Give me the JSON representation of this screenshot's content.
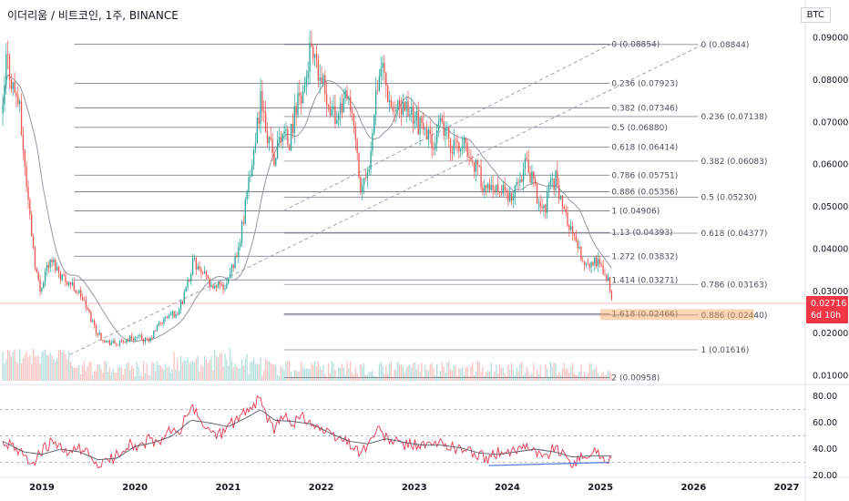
{
  "header": {
    "title": "이더리움 / 비트코인, 1주, BINANCE",
    "quote_currency": "BTC"
  },
  "price_tag": {
    "value": "0.02716",
    "countdown": "6d 10h",
    "color": "#f23645"
  },
  "colors": {
    "up": "#26a69a",
    "down": "#ef5350",
    "ma": "#9598a1",
    "rsi": "#e53950",
    "rsi_ma": "#555a66",
    "fib_line": "#6b6f7a",
    "zone": "#f7a35c",
    "divergence": "#5b7fdc",
    "trend": "#8a8e99"
  },
  "chart_data": [
    {
      "type": "candlestick",
      "xlabel": "",
      "ylabel": "",
      "x_ticks": [
        "2019",
        "2020",
        "2021",
        "2022",
        "2023",
        "2024",
        "2025",
        "2026",
        "2027"
      ],
      "y_ticks": [
        "0.01000",
        "0.02000",
        "0.03000",
        "0.04000",
        "0.05000",
        "0.06000",
        "0.07000",
        "0.08000",
        "0.09000"
      ],
      "ylim": [
        0.0084,
        0.0925
      ],
      "xlim": [
        2018.55,
        2027.2
      ],
      "price_anchors": [
        [
          2018.58,
          0.072
        ],
        [
          2018.62,
          0.086
        ],
        [
          2018.68,
          0.079
        ],
        [
          2018.75,
          0.075
        ],
        [
          2018.85,
          0.052
        ],
        [
          2018.93,
          0.036
        ],
        [
          2018.98,
          0.03
        ],
        [
          2019.05,
          0.036
        ],
        [
          2019.12,
          0.037
        ],
        [
          2019.2,
          0.034
        ],
        [
          2019.3,
          0.032
        ],
        [
          2019.42,
          0.029
        ],
        [
          2019.5,
          0.025
        ],
        [
          2019.6,
          0.02
        ],
        [
          2019.7,
          0.018
        ],
        [
          2019.82,
          0.0175
        ],
        [
          2019.95,
          0.019
        ],
        [
          2020.05,
          0.019
        ],
        [
          2020.15,
          0.018
        ],
        [
          2020.25,
          0.022
        ],
        [
          2020.35,
          0.024
        ],
        [
          2020.45,
          0.025
        ],
        [
          2020.55,
          0.03
        ],
        [
          2020.62,
          0.037
        ],
        [
          2020.7,
          0.035
        ],
        [
          2020.8,
          0.032
        ],
        [
          2020.92,
          0.031
        ],
        [
          2021.0,
          0.032
        ],
        [
          2021.08,
          0.038
        ],
        [
          2021.15,
          0.045
        ],
        [
          2021.25,
          0.06
        ],
        [
          2021.35,
          0.075
        ],
        [
          2021.42,
          0.066
        ],
        [
          2021.5,
          0.062
        ],
        [
          2021.58,
          0.068
        ],
        [
          2021.66,
          0.065
        ],
        [
          2021.75,
          0.076
        ],
        [
          2021.82,
          0.078
        ],
        [
          2021.88,
          0.087
        ],
        [
          2021.95,
          0.082
        ],
        [
          2022.05,
          0.077
        ],
        [
          2022.15,
          0.071
        ],
        [
          2022.25,
          0.076
        ],
        [
          2022.35,
          0.07
        ],
        [
          2022.42,
          0.054
        ],
        [
          2022.5,
          0.057
        ],
        [
          2022.58,
          0.077
        ],
        [
          2022.65,
          0.085
        ],
        [
          2022.72,
          0.077
        ],
        [
          2022.8,
          0.072
        ],
        [
          2022.9,
          0.074
        ],
        [
          2023.0,
          0.072
        ],
        [
          2023.1,
          0.067
        ],
        [
          2023.2,
          0.066
        ],
        [
          2023.3,
          0.069
        ],
        [
          2023.38,
          0.065
        ],
        [
          2023.45,
          0.064
        ],
        [
          2023.55,
          0.064
        ],
        [
          2023.65,
          0.06
        ],
        [
          2023.75,
          0.055
        ],
        [
          2023.85,
          0.053
        ],
        [
          2023.95,
          0.054
        ],
        [
          2024.05,
          0.051
        ],
        [
          2024.15,
          0.058
        ],
        [
          2024.2,
          0.06
        ],
        [
          2024.3,
          0.054
        ],
        [
          2024.38,
          0.048
        ],
        [
          2024.45,
          0.054
        ],
        [
          2024.52,
          0.057
        ],
        [
          2024.6,
          0.05
        ],
        [
          2024.7,
          0.043
        ],
        [
          2024.78,
          0.039
        ],
        [
          2024.86,
          0.036
        ],
        [
          2024.95,
          0.037
        ],
        [
          2025.02,
          0.035
        ],
        [
          2025.08,
          0.033
        ],
        [
          2025.12,
          0.02716
        ]
      ],
      "volume_bars": 360
    },
    {
      "type": "line",
      "title": "",
      "ylim": [
        20,
        85
      ],
      "y_ticks": [
        "20.00",
        "40.00",
        "60.00",
        "80.00"
      ],
      "guides": [
        30,
        50,
        70
      ],
      "divergence_line": {
        "from": [
          2023.8,
          27.5
        ],
        "to": [
          2025.1,
          30
        ]
      },
      "rsi_anchors": [
        [
          2018.58,
          47
        ],
        [
          2018.7,
          40
        ],
        [
          2018.8,
          35
        ],
        [
          2018.9,
          30
        ],
        [
          2019.0,
          38
        ],
        [
          2019.1,
          45
        ],
        [
          2019.2,
          40
        ],
        [
          2019.3,
          35
        ],
        [
          2019.4,
          42
        ],
        [
          2019.5,
          35
        ],
        [
          2019.6,
          28
        ],
        [
          2019.7,
          30
        ],
        [
          2019.8,
          35
        ],
        [
          2019.95,
          45
        ],
        [
          2020.05,
          40
        ],
        [
          2020.15,
          48
        ],
        [
          2020.25,
          42
        ],
        [
          2020.35,
          55
        ],
        [
          2020.45,
          50
        ],
        [
          2020.55,
          65
        ],
        [
          2020.62,
          72
        ],
        [
          2020.7,
          60
        ],
        [
          2020.8,
          55
        ],
        [
          2020.9,
          50
        ],
        [
          2021.0,
          58
        ],
        [
          2021.1,
          62
        ],
        [
          2021.2,
          70
        ],
        [
          2021.3,
          75
        ],
        [
          2021.35,
          80
        ],
        [
          2021.42,
          62
        ],
        [
          2021.5,
          55
        ],
        [
          2021.6,
          65
        ],
        [
          2021.7,
          60
        ],
        [
          2021.8,
          65
        ],
        [
          2021.9,
          60
        ],
        [
          2022.0,
          55
        ],
        [
          2022.1,
          50
        ],
        [
          2022.2,
          48
        ],
        [
          2022.3,
          45
        ],
        [
          2022.4,
          38
        ],
        [
          2022.5,
          42
        ],
        [
          2022.6,
          55
        ],
        [
          2022.7,
          48
        ],
        [
          2022.8,
          45
        ],
        [
          2022.9,
          43
        ],
        [
          2023.0,
          44
        ],
        [
          2023.1,
          42
        ],
        [
          2023.2,
          43
        ],
        [
          2023.3,
          44
        ],
        [
          2023.4,
          42
        ],
        [
          2023.5,
          40
        ],
        [
          2023.6,
          38
        ],
        [
          2023.7,
          35
        ],
        [
          2023.8,
          33
        ],
        [
          2023.9,
          38
        ],
        [
          2024.0,
          35
        ],
        [
          2024.1,
          40
        ],
        [
          2024.2,
          45
        ],
        [
          2024.3,
          38
        ],
        [
          2024.4,
          33
        ],
        [
          2024.5,
          42
        ],
        [
          2024.6,
          35
        ],
        [
          2024.7,
          30
        ],
        [
          2024.8,
          33
        ],
        [
          2024.9,
          38
        ],
        [
          2025.0,
          36
        ],
        [
          2025.05,
          32
        ],
        [
          2025.1,
          33
        ]
      ],
      "rsi_ma_anchors": [
        [
          2018.58,
          46
        ],
        [
          2018.8,
          38
        ],
        [
          2019.0,
          36
        ],
        [
          2019.2,
          40
        ],
        [
          2019.4,
          38
        ],
        [
          2019.6,
          32
        ],
        [
          2019.8,
          33
        ],
        [
          2020.0,
          42
        ],
        [
          2020.2,
          45
        ],
        [
          2020.4,
          50
        ],
        [
          2020.6,
          62
        ],
        [
          2020.8,
          60
        ],
        [
          2021.0,
          57
        ],
        [
          2021.2,
          64
        ],
        [
          2021.35,
          70
        ],
        [
          2021.5,
          62
        ],
        [
          2021.7,
          61
        ],
        [
          2021.9,
          59
        ],
        [
          2022.1,
          52
        ],
        [
          2022.3,
          46
        ],
        [
          2022.5,
          44
        ],
        [
          2022.7,
          48
        ],
        [
          2022.9,
          45
        ],
        [
          2023.1,
          43
        ],
        [
          2023.3,
          43
        ],
        [
          2023.5,
          41
        ],
        [
          2023.7,
          37
        ],
        [
          2023.9,
          36
        ],
        [
          2024.1,
          38
        ],
        [
          2024.3,
          40
        ],
        [
          2024.5,
          38
        ],
        [
          2024.7,
          34
        ],
        [
          2024.9,
          35
        ],
        [
          2025.1,
          35
        ]
      ]
    }
  ],
  "fib_left": {
    "levels": [
      0.08854,
      0.07923,
      0.07346,
      0.0688,
      0.06414,
      0.05751,
      0.05356,
      0.04906,
      0.04393,
      0.03832,
      0.03271,
      0.02466,
      0.00958
    ],
    "labels": [
      "0 (0.08854)",
      "0.236 (0.07923)",
      "0.382 (0.07346)",
      "0.5 (0.06880)",
      "0.618 (0.06414)",
      "0.786 (0.05751)",
      "0.886 (0.05356)",
      "1 (0.04906)",
      "1.13 (0.04393)",
      "1.272 (0.03832)",
      "1.414 (0.03271)",
      "1.618 (0.02466)",
      "2 (0.00958)"
    ]
  },
  "fib_right": {
    "levels": [
      0.08844,
      0.07138,
      0.06083,
      0.0523,
      0.04377,
      0.03163,
      0.0244,
      0.01616
    ],
    "labels": [
      "0 (0.08844)",
      "0.236 (0.07138)",
      "0.382 (0.06083)",
      "0.5 (0.05230)",
      "0.618 (0.04377)",
      "0.786 (0.03163)",
      "0.886 (0.02440)",
      "1 (0.01616)"
    ]
  }
}
